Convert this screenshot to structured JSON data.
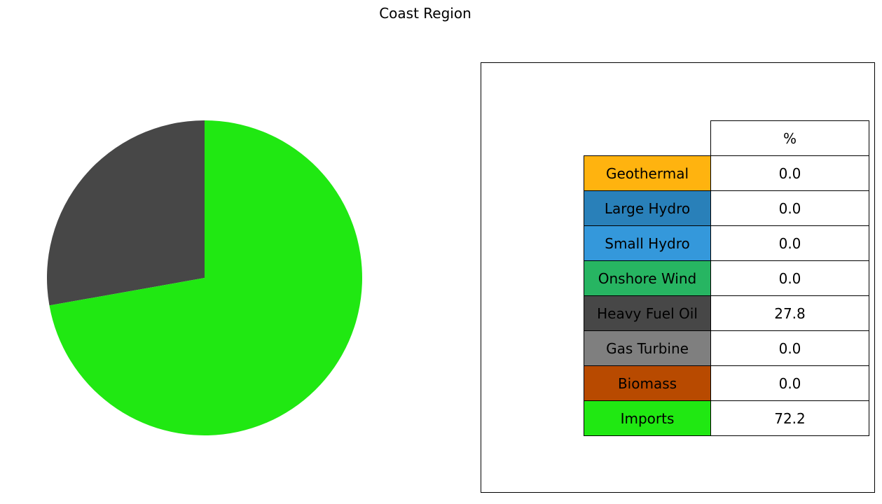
{
  "chart_data": {
    "type": "pie",
    "title": "Coast Region",
    "table_header": "%",
    "categories": [
      "Geothermal",
      "Large Hydro",
      "Small Hydro",
      "Onshore Wind",
      "Heavy Fuel Oil",
      "Gas Turbine",
      "Biomass",
      "Imports"
    ],
    "values": [
      0.0,
      0.0,
      0.0,
      0.0,
      27.8,
      0.0,
      0.0,
      72.2
    ],
    "value_labels": [
      "0.0",
      "0.0",
      "0.0",
      "0.0",
      "27.8",
      "0.0",
      "0.0",
      "72.2"
    ],
    "colors": [
      "#ffb30f",
      "#2980b9",
      "#3498db",
      "#27b562",
      "#474747",
      "#7f7f7f",
      "#b84a00",
      "#20e812"
    ],
    "start_angle_deg": 90,
    "direction": "counterclockwise"
  }
}
